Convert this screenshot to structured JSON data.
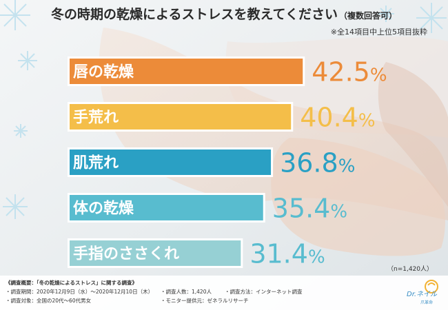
{
  "title": "冬の時期の乾燥によるストレスを教えてください",
  "title_suffix": "（複数回答可）",
  "note_top": "※全14項目中上位5項目抜粋",
  "sample_note": "（n=1,420人）",
  "chart_data": {
    "type": "bar",
    "orientation": "horizontal",
    "title": "冬の時期の乾燥によるストレスを教えてください（複数回答可）",
    "categories": [
      "唇の乾燥",
      "手荒れ",
      "肌荒れ",
      "体の乾燥",
      "手指のささくれ"
    ],
    "values": [
      42.5,
      40.4,
      36.8,
      35.4,
      31.4
    ],
    "value_labels": [
      {
        "num": "42.5",
        "unit": "%"
      },
      {
        "num": "40.4",
        "unit": "%"
      },
      {
        "num": "36.8",
        "unit": "%"
      },
      {
        "num": "35.4",
        "unit": "%"
      },
      {
        "num": "31.4",
        "unit": "%"
      }
    ],
    "colors": [
      "#ec8b39",
      "#f4be49",
      "#2aa0c4",
      "#58bccf",
      "#96d0d4"
    ],
    "label_colors": [
      "#ec8b39",
      "#f4be49",
      "#2aa0c4",
      "#58bccf",
      "#58bccf"
    ],
    "unit": "%",
    "grid": false,
    "legend": "none"
  },
  "footer": {
    "heading": "《調査概要：「冬の乾燥によるストレス」に関する調査》",
    "period": "・調査期間：2020年12月9日（水）〜2020年12月10日（木）",
    "count": "・調査人数：1,420人",
    "method": "・調査方法：インターネット調査",
    "target": "・調査対象：全国の20代〜60代男女",
    "provider": "・モニター提供元：ゼネラルリサーチ"
  },
  "logo": {
    "brand": "Dr.",
    "name": "ネイル",
    "sub": "爪革命"
  }
}
